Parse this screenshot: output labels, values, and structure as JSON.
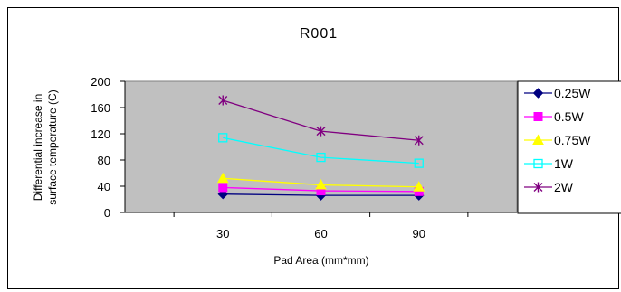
{
  "chart_data": {
    "type": "line",
    "title": "R001",
    "xlabel": "Pad Area (mm*mm)",
    "ylabel_lines": [
      "Differential increase in",
      "surface temperature (C)"
    ],
    "categories": [
      "30",
      "60",
      "90"
    ],
    "y_ticks": [
      "0",
      "40",
      "80",
      "120",
      "160",
      "200"
    ],
    "ylim": [
      0,
      200
    ],
    "grid": false,
    "legend_position": "right",
    "plot_background": "#c0c0c0",
    "series": [
      {
        "name": "0.25W",
        "values": [
          28,
          26,
          26
        ],
        "color": "#000080",
        "marker": "diamond"
      },
      {
        "name": "0.5W",
        "values": [
          38,
          33,
          32
        ],
        "color": "#ff00ff",
        "marker": "square"
      },
      {
        "name": "0.75W",
        "values": [
          52,
          42,
          39
        ],
        "color": "#ffff00",
        "marker": "triangle"
      },
      {
        "name": "1W",
        "values": [
          114,
          84,
          75
        ],
        "color": "#00ffff",
        "marker": "open-square"
      },
      {
        "name": "2W",
        "values": [
          171,
          124,
          110
        ],
        "color": "#800080",
        "marker": "star"
      }
    ]
  }
}
